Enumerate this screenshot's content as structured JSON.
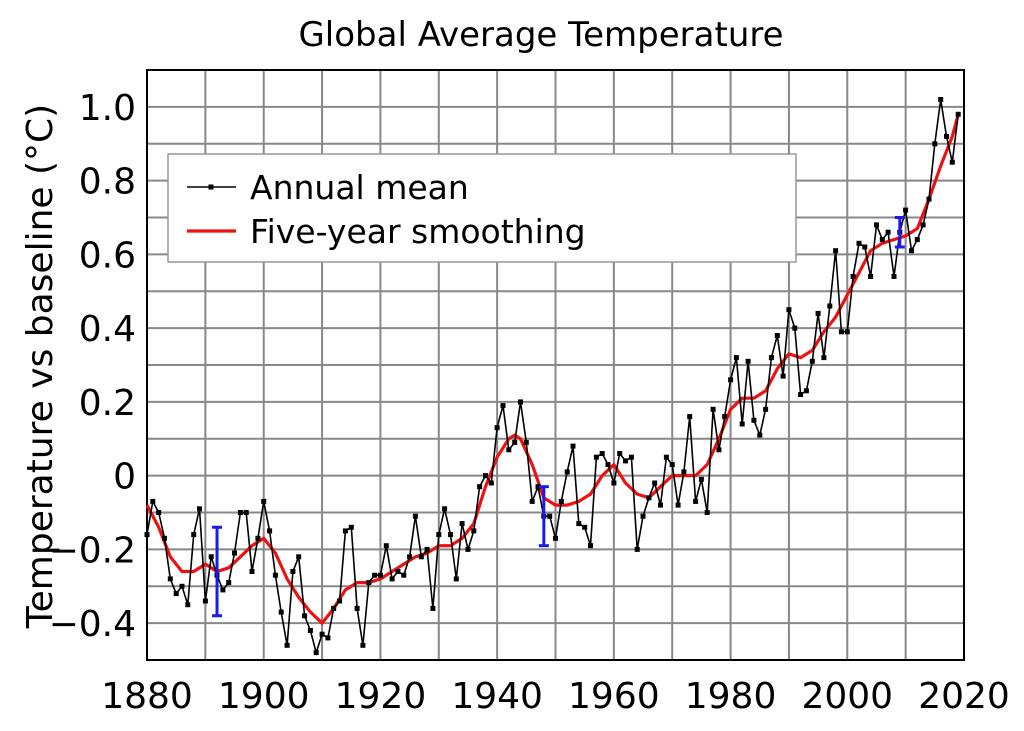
{
  "colors": {
    "annual": "#000000",
    "smooth": "#ee1111",
    "error_bar": "#1a1aee",
    "grid": "#888888"
  },
  "chart_data": {
    "type": "line",
    "title": "Global Average Temperature",
    "xlabel": "",
    "ylabel": "Temperature vs baseline (°C)",
    "xlim": [
      1880,
      2020
    ],
    "ylim": [
      -0.5,
      1.1
    ],
    "grid": true,
    "legend_position": "top-left",
    "x_ticks": [
      1880,
      1900,
      1920,
      1940,
      1960,
      1980,
      2000,
      2020
    ],
    "x_tick_labels": [
      "1880",
      "1900",
      "1920",
      "1940",
      "1960",
      "1980",
      "2000",
      "2020"
    ],
    "y_ticks": [
      -0.4,
      -0.2,
      0,
      0.2,
      0.4,
      0.6,
      0.8,
      1.0
    ],
    "y_tick_labels": [
      "−0.4",
      "−0.2",
      "0",
      "0.2",
      "0.4",
      "0.6",
      "0.8",
      "1.0"
    ],
    "series": [
      {
        "name": "Annual mean",
        "x_start": 1880,
        "values": [
          -0.16,
          -0.07,
          -0.1,
          -0.17,
          -0.28,
          -0.32,
          -0.3,
          -0.35,
          -0.16,
          -0.09,
          -0.34,
          -0.22,
          -0.27,
          -0.31,
          -0.29,
          -0.21,
          -0.1,
          -0.1,
          -0.26,
          -0.17,
          -0.07,
          -0.15,
          -0.27,
          -0.37,
          -0.46,
          -0.26,
          -0.22,
          -0.38,
          -0.42,
          -0.48,
          -0.43,
          -0.44,
          -0.36,
          -0.34,
          -0.15,
          -0.14,
          -0.36,
          -0.46,
          -0.29,
          -0.27,
          -0.27,
          -0.19,
          -0.28,
          -0.26,
          -0.27,
          -0.22,
          -0.11,
          -0.22,
          -0.2,
          -0.36,
          -0.16,
          -0.09,
          -0.16,
          -0.28,
          -0.13,
          -0.2,
          -0.15,
          -0.03,
          0.0,
          -0.02,
          0.13,
          0.19,
          0.07,
          0.09,
          0.2,
          0.09,
          -0.07,
          -0.03,
          -0.11,
          -0.11,
          -0.17,
          -0.07,
          0.01,
          0.08,
          -0.13,
          -0.14,
          -0.19,
          0.05,
          0.06,
          0.03,
          -0.02,
          0.06,
          0.04,
          0.05,
          -0.2,
          -0.11,
          -0.06,
          -0.02,
          -0.08,
          0.05,
          0.03,
          -0.08,
          0.01,
          0.16,
          -0.07,
          -0.01,
          -0.1,
          0.18,
          0.07,
          0.16,
          0.26,
          0.32,
          0.14,
          0.31,
          0.15,
          0.11,
          0.18,
          0.32,
          0.38,
          0.27,
          0.45,
          0.4,
          0.22,
          0.23,
          0.31,
          0.44,
          0.32,
          0.46,
          0.61,
          0.39,
          0.39,
          0.54,
          0.63,
          0.62,
          0.54,
          0.68,
          0.64,
          0.66,
          0.54,
          0.66,
          0.72,
          0.61,
          0.64,
          0.68,
          0.75,
          0.9,
          1.02,
          0.92,
          0.85,
          0.98
        ]
      },
      {
        "name": "Five-year smoothing",
        "x": [
          1880,
          1882,
          1884,
          1886,
          1888,
          1890,
          1892,
          1894,
          1896,
          1898,
          1900,
          1902,
          1904,
          1906,
          1908,
          1910,
          1912,
          1914,
          1916,
          1918,
          1920,
          1922,
          1924,
          1926,
          1928,
          1930,
          1932,
          1934,
          1936,
          1938,
          1940,
          1942,
          1943,
          1944,
          1946,
          1948,
          1950,
          1952,
          1954,
          1956,
          1958,
          1960,
          1962,
          1964,
          1966,
          1968,
          1970,
          1972,
          1974,
          1976,
          1978,
          1980,
          1982,
          1984,
          1986,
          1988,
          1990,
          1992,
          1994,
          1996,
          1998,
          2000,
          2002,
          2004,
          2006,
          2008,
          2010,
          2012,
          2014,
          2016,
          2018,
          2019
        ],
        "values": [
          -0.08,
          -0.14,
          -0.22,
          -0.26,
          -0.26,
          -0.24,
          -0.26,
          -0.25,
          -0.22,
          -0.19,
          -0.17,
          -0.21,
          -0.28,
          -0.33,
          -0.37,
          -0.4,
          -0.36,
          -0.31,
          -0.29,
          -0.29,
          -0.28,
          -0.26,
          -0.24,
          -0.22,
          -0.21,
          -0.19,
          -0.19,
          -0.17,
          -0.13,
          -0.03,
          0.05,
          0.1,
          0.11,
          0.1,
          0.03,
          -0.06,
          -0.08,
          -0.08,
          -0.07,
          -0.05,
          0.0,
          0.03,
          -0.02,
          -0.05,
          -0.06,
          -0.03,
          0.0,
          0.0,
          0.0,
          0.03,
          0.1,
          0.18,
          0.21,
          0.21,
          0.23,
          0.29,
          0.33,
          0.32,
          0.34,
          0.39,
          0.43,
          0.49,
          0.55,
          0.61,
          0.63,
          0.64,
          0.65,
          0.67,
          0.75,
          0.84,
          0.92,
          0.98
        ]
      }
    ],
    "error_bars": [
      {
        "x": 1892,
        "low": -0.38,
        "high": -0.14
      },
      {
        "x": 1948,
        "low": -0.19,
        "high": -0.03
      },
      {
        "x": 2009,
        "low": 0.62,
        "high": 0.7
      }
    ]
  }
}
